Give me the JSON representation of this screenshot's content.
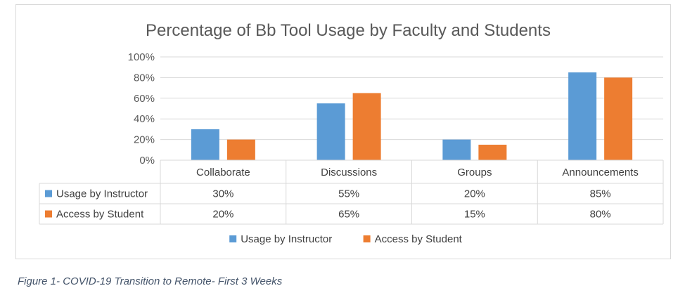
{
  "chart_data": {
    "type": "bar",
    "title": "Percentage of Bb Tool Usage by Faculty and Students",
    "categories": [
      "Collaborate",
      "Discussions",
      "Groups",
      "Announcements"
    ],
    "series": [
      {
        "name": "Usage by Instructor",
        "values": [
          30,
          55,
          20,
          85
        ],
        "labels": [
          "30%",
          "55%",
          "20%",
          "85%"
        ],
        "color": "#5b9bd5"
      },
      {
        "name": "Access by Student",
        "values": [
          20,
          65,
          15,
          80
        ],
        "labels": [
          "20%",
          "65%",
          "15%",
          "80%"
        ],
        "color": "#ed7d31"
      }
    ],
    "ylim": [
      0,
      100
    ],
    "yticks": [
      "0%",
      "20%",
      "40%",
      "60%",
      "80%",
      "100%"
    ],
    "grid": true,
    "legend": "bottom",
    "data_table": true
  },
  "caption": "Figure 1- COVID-19 Transition to Remote- First 3 Weeks"
}
